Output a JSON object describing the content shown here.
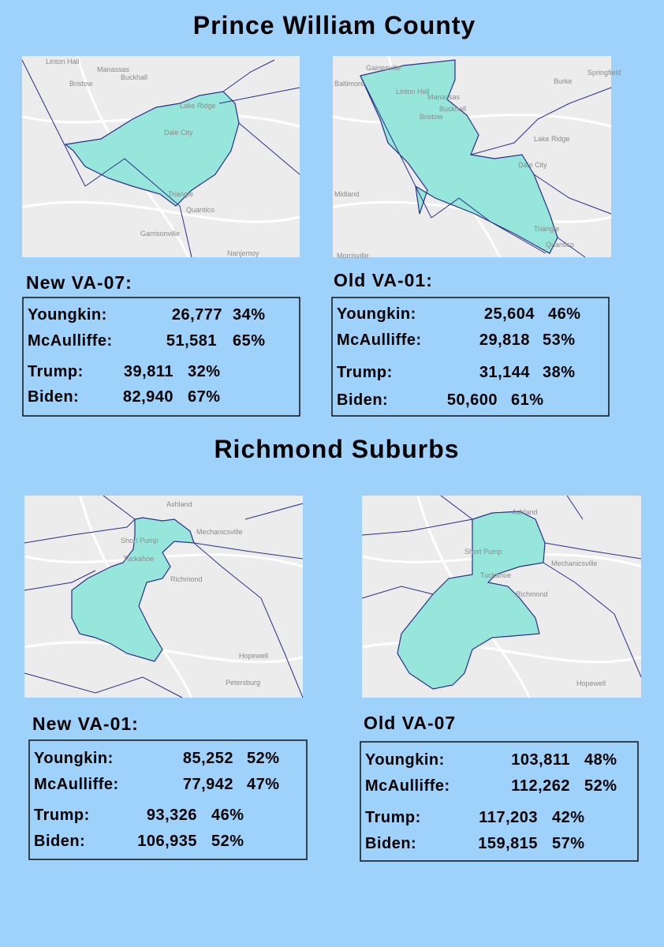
{
  "sections": [
    {
      "title": "Prince William County",
      "panels": [
        {
          "map_labels": [
            "Linton Hall",
            "Manassas",
            "Bristow",
            "Buckhall",
            "Lake Ridge",
            "Dale City",
            "Triangle",
            "Quantico",
            "Garrisonville",
            "Nanjemoy"
          ],
          "heading": "New VA-07:",
          "rows": [
            [
              "Youngkin:",
              "26,777",
              "34%"
            ],
            [
              "McAulliffe:",
              "51,581",
              "65%"
            ],
            [
              "Trump:",
              "39,811",
              "32%"
            ],
            [
              "Biden:",
              "82,940",
              "67%"
            ]
          ]
        },
        {
          "map_labels": [
            "Gainesville",
            "Linton Hall",
            "Manassas",
            "Buckhall",
            "Bristow",
            "Burke",
            "Springfield",
            "Lake Ridge",
            "Dale City",
            "Triangle",
            "Quantico",
            "Morrisville",
            "Midland",
            "Baltimore"
          ],
          "heading": "Old VA-01:",
          "rows": [
            [
              "Youngkin:",
              "25,604",
              "46%"
            ],
            [
              "McAulliffe:",
              "29,818",
              "53%"
            ],
            [
              "Trump:",
              "31,144",
              "38%"
            ],
            [
              "Biden:",
              "50,600",
              "61%"
            ]
          ]
        }
      ]
    },
    {
      "title": "Richmond Suburbs",
      "panels": [
        {
          "map_labels": [
            "Ashland",
            "Short Pump",
            "Mechanicsville",
            "Tuckahoe",
            "Richmond",
            "Hopewell",
            "Petersburg"
          ],
          "heading": "New VA-01:",
          "rows": [
            [
              "Youngkin:",
              "85,252",
              "52%"
            ],
            [
              "McAulliffe:",
              "77,942",
              "47%"
            ],
            [
              "Trump:",
              "93,326",
              "46%"
            ],
            [
              "Biden:",
              "106,935",
              "52%"
            ]
          ]
        },
        {
          "map_labels": [
            "Ashland",
            "Short Pump",
            "Mechanicsville",
            "Tuckahoe",
            "Richmond",
            "Hopewell"
          ],
          "heading": "Old VA-07",
          "rows": [
            [
              "Youngkin:",
              "103,811",
              "48%"
            ],
            [
              "McAulliffe:",
              "112,262",
              "52%"
            ],
            [
              "Trump:",
              "117,203",
              "42%"
            ],
            [
              "Biden:",
              "159,815",
              "57%"
            ]
          ]
        }
      ]
    }
  ]
}
